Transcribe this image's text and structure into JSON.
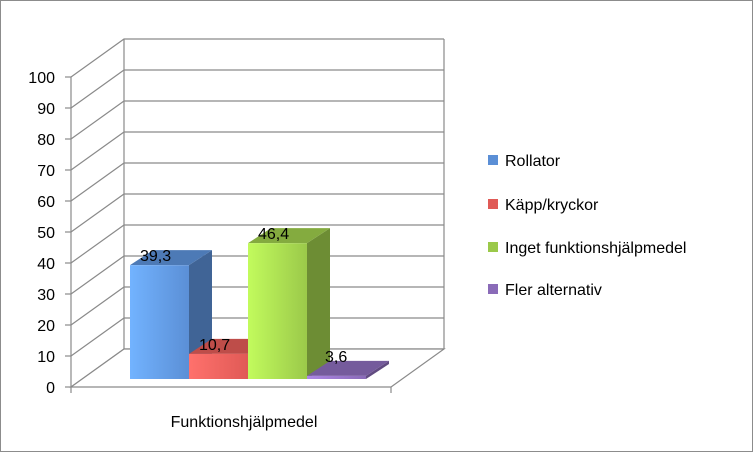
{
  "chart_data": {
    "type": "bar",
    "categories": [
      "Funktionshjälpmedel"
    ],
    "series": [
      {
        "name": "Rollator",
        "values": [
          39.3
        ],
        "label": "39,3",
        "color": "#5b8fd6"
      },
      {
        "name": "Käpp/kryckor",
        "values": [
          10.7
        ],
        "label": "10,7",
        "color": "#e05a56"
      },
      {
        "name": "Inget funktionshjälpmedel",
        "values": [
          46.4
        ],
        "label": "46,4",
        "color": "#9bc94a"
      },
      {
        "name": "Fler alternativ",
        "values": [
          3.6
        ],
        "label": "3,6",
        "color": "#8a6bb8"
      }
    ],
    "yticks": [
      "0",
      "10",
      "20",
      "30",
      "40",
      "50",
      "60",
      "70",
      "80",
      "90",
      "100"
    ],
    "ylim": [
      0,
      100
    ],
    "grid": true,
    "three_d": true,
    "legend_position": "right"
  }
}
